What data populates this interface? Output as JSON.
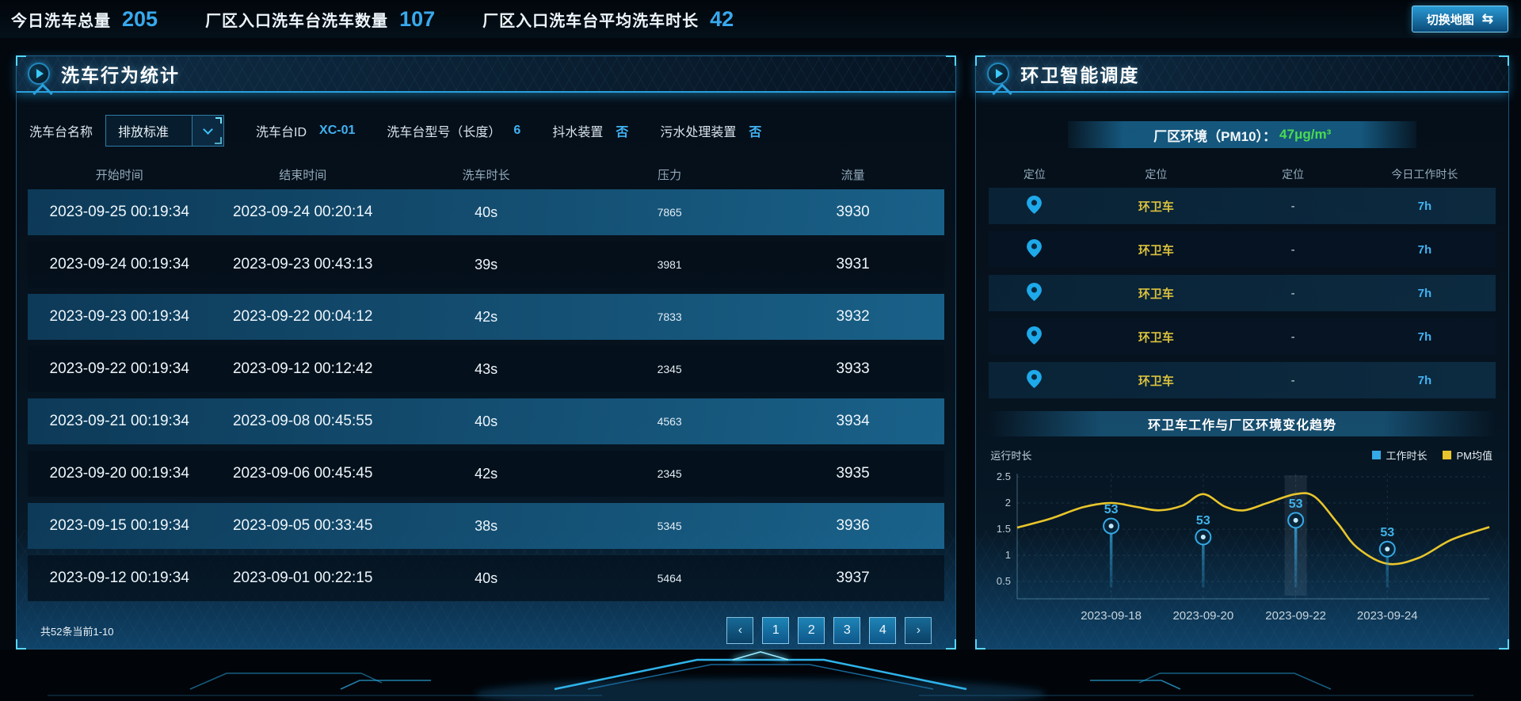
{
  "topbar": {
    "stats": [
      {
        "label": "今日洗车总量",
        "value": "205"
      },
      {
        "label": "厂区入口洗车台洗车数量",
        "value": "107"
      },
      {
        "label": "厂区入口洗车台平均洗车时长",
        "value": "42"
      }
    ],
    "switch_map_label": "切换地图",
    "switch_map_icon": "⇆"
  },
  "left_panel": {
    "title": "洗车行为统计",
    "filters": {
      "name_label": "洗车台名称",
      "name_value": "排放标准",
      "id_label": "洗车台ID",
      "id_value": "XC-01",
      "model_label": "洗车台型号（长度）",
      "model_value": "6",
      "shake_label": "抖水装置",
      "shake_value": "否",
      "sewage_label": "污水处理装置",
      "sewage_value": "否"
    },
    "table": {
      "headers": [
        "开始时间",
        "结束时间",
        "洗车时长",
        "压力",
        "流量"
      ],
      "rows": [
        [
          "2023-09-25 00:19:34",
          "2023-09-24 00:20:14",
          "40s",
          "7865",
          "3930"
        ],
        [
          "2023-09-24 00:19:34",
          "2023-09-23 00:43:13",
          "39s",
          "3981",
          "3931"
        ],
        [
          "2023-09-23 00:19:34",
          "2023-09-22 00:04:12",
          "42s",
          "7833",
          "3932"
        ],
        [
          "2023-09-22 00:19:34",
          "2023-09-12 00:12:42",
          "43s",
          "2345",
          "3933"
        ],
        [
          "2023-09-21 00:19:34",
          "2023-09-08 00:45:55",
          "40s",
          "4563",
          "3934"
        ],
        [
          "2023-09-20 00:19:34",
          "2023-09-06 00:45:45",
          "42s",
          "2345",
          "3935"
        ],
        [
          "2023-09-15 00:19:34",
          "2023-09-05 00:33:45",
          "38s",
          "5345",
          "3936"
        ],
        [
          "2023-09-12 00:19:34",
          "2023-09-01 00:22:15",
          "40s",
          "5464",
          "3937"
        ]
      ]
    },
    "pagination": {
      "summary": "共52条当前1-10",
      "prev": "‹",
      "next": "›",
      "pages": [
        "1",
        "2",
        "3",
        "4"
      ]
    }
  },
  "right_panel": {
    "title": "环卫智能调度",
    "pm_label": "厂区环境（PM10）：",
    "pm_value": "47μg/m³",
    "pm_value_color": "#4adb52",
    "table": {
      "headers": [
        "定位",
        "定位",
        "定位",
        "今日工作时长"
      ],
      "rows": [
        {
          "pin": "location-pin",
          "name": "环卫车",
          "dash": "-",
          "hours": "7h"
        },
        {
          "pin": "location-pin",
          "name": "环卫车",
          "dash": "-",
          "hours": "7h"
        },
        {
          "pin": "location-pin",
          "name": "环卫车",
          "dash": "-",
          "hours": "7h"
        },
        {
          "pin": "location-pin",
          "name": "环卫车",
          "dash": "-",
          "hours": "7h"
        },
        {
          "pin": "location-pin",
          "name": "环卫车",
          "dash": "-",
          "hours": "7h"
        }
      ]
    },
    "chart_title": "环卫车工作与厂区环境变化趋势"
  },
  "chart_data": {
    "type": "line",
    "title": "环卫车工作与厂区环境变化趋势",
    "ylabel": "运行时长",
    "x_ticks": [
      "2023-09-18",
      "2023-09-20",
      "2023-09-22",
      "2023-09-24"
    ],
    "x_tick_rel": [
      0.199,
      0.394,
      0.59,
      0.784
    ],
    "y_ticks": [
      0.5,
      1,
      1.5,
      2,
      2.5
    ],
    "ylim": [
      0.17,
      2.56
    ],
    "grid": true,
    "legend_position": "top-right",
    "highlight_band_rel": 0.59,
    "series": [
      {
        "name": "工作时长",
        "style": "lollipop",
        "color": "#35aae6",
        "x_rel": [
          0.199,
          0.394,
          0.59,
          0.784
        ],
        "values": [
          1.56,
          1.35,
          1.67,
          1.12
        ],
        "point_labels": [
          "53",
          "53",
          "53",
          "53"
        ]
      },
      {
        "name": "PM均值",
        "style": "smooth-line",
        "color": "#e8c52c",
        "x_rel": [
          0,
          0.07,
          0.14,
          0.199,
          0.25,
          0.3,
          0.35,
          0.394,
          0.44,
          0.48,
          0.53,
          0.59,
          0.63,
          0.68,
          0.72,
          0.784,
          0.85,
          0.92,
          1.0
        ],
        "values": [
          1.53,
          1.7,
          1.92,
          2.0,
          1.93,
          1.86,
          1.95,
          2.17,
          1.93,
          1.86,
          2.0,
          2.17,
          2.12,
          1.6,
          1.15,
          0.84,
          0.95,
          1.3,
          1.54
        ]
      }
    ]
  }
}
